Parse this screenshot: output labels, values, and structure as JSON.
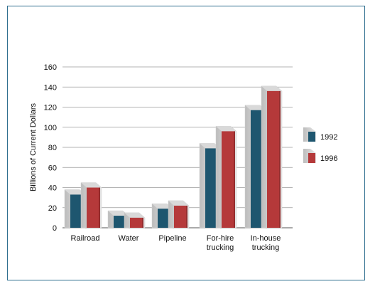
{
  "chart_data": {
    "type": "bar",
    "categories": [
      "Railroad",
      "Water",
      "Pipeline",
      "For-hire trucking",
      "In-house trucking"
    ],
    "category_lines": [
      [
        "Railroad"
      ],
      [
        "Water"
      ],
      [
        "Pipeline"
      ],
      [
        "For-hire",
        "trucking"
      ],
      [
        "In-house",
        "trucking"
      ]
    ],
    "series": [
      {
        "name": "1992",
        "values": [
          33,
          12,
          19,
          79,
          117
        ],
        "color": "#1e566f"
      },
      {
        "name": "1996",
        "values": [
          40,
          10,
          22,
          96,
          136
        ],
        "color": "#b5393a"
      }
    ],
    "title": "",
    "xlabel": "",
    "ylabel": "Billions of Current Dollars",
    "ylim": [
      0,
      160
    ],
    "yticks": [
      0,
      20,
      40,
      60,
      80,
      100,
      120,
      140,
      160
    ],
    "grid": true,
    "legend_position": "right"
  }
}
